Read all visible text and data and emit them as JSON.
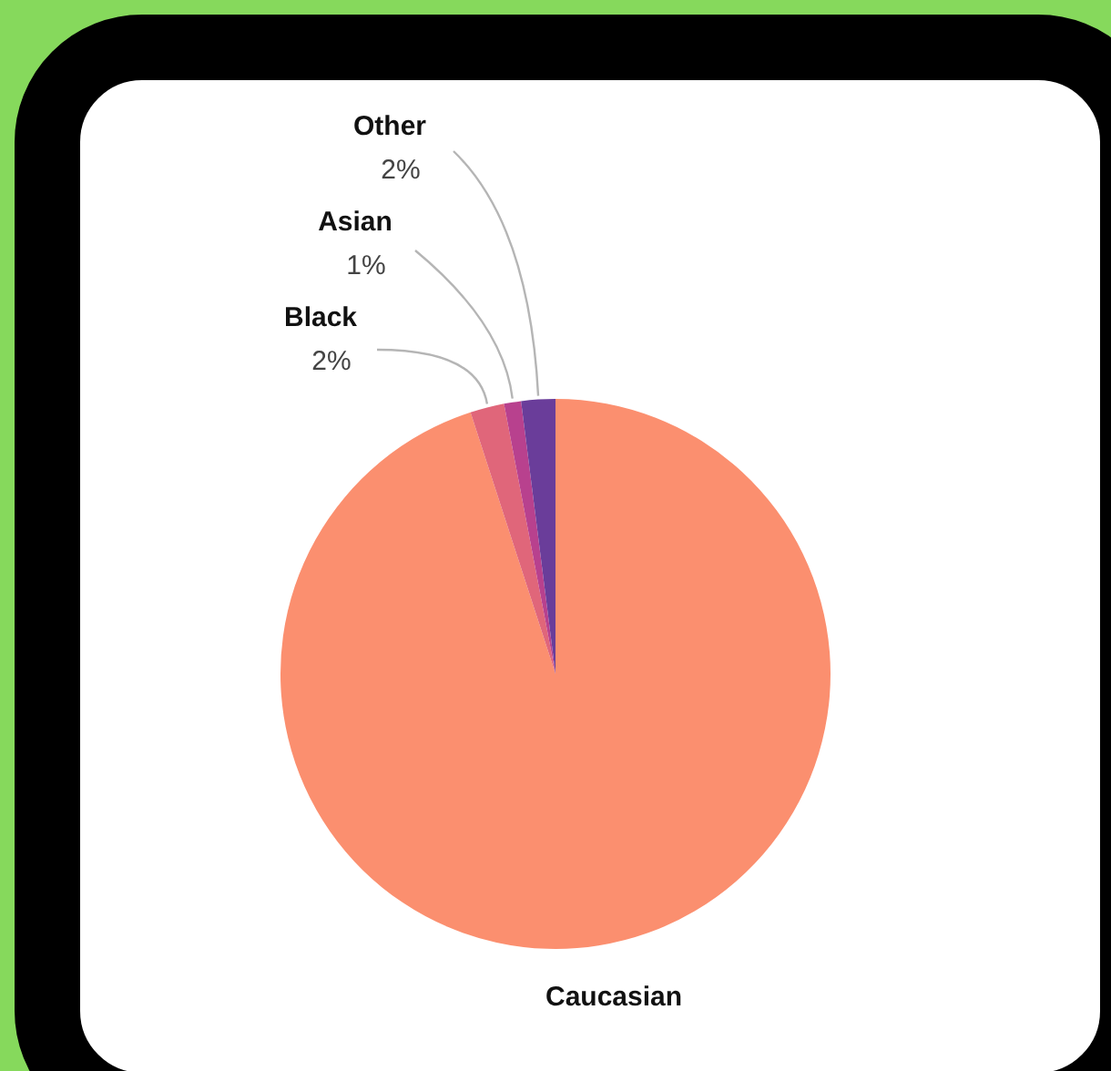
{
  "chart_data": {
    "type": "pie",
    "categories": [
      "Caucasian",
      "Black",
      "Asian",
      "Other"
    ],
    "values": [
      95,
      2,
      1,
      2
    ],
    "colors": [
      "#fb8f6f",
      "#e0667a",
      "#b8418e",
      "#6a3d9a"
    ],
    "value_labels": [
      null,
      "2%",
      "1%",
      "2%"
    ],
    "legend": false
  }
}
